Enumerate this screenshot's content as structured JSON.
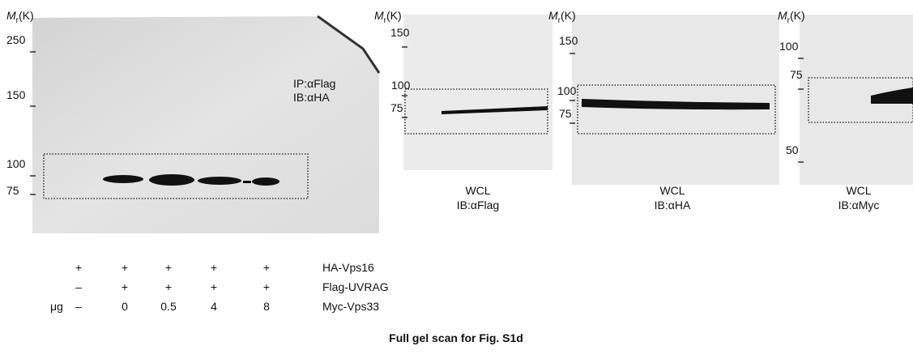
{
  "panels": [
    {
      "mr": {
        "symbol": "M",
        "subscript": "r",
        "unit": "(K)"
      },
      "markers": [
        250,
        150,
        100,
        75
      ],
      "label": [
        "IP:αFlag",
        "IB:αHA"
      ]
    },
    {
      "mr": {
        "symbol": "M",
        "subscript": "r",
        "unit": "(K)"
      },
      "markers": [
        150,
        100,
        75
      ],
      "label": [
        "WCL",
        "IB:αFlag"
      ]
    },
    {
      "mr": {
        "symbol": "M",
        "subscript": "r",
        "unit": "(K)"
      },
      "markers": [
        150,
        100,
        75
      ],
      "label": [
        "WCL",
        "IB:αHA"
      ]
    },
    {
      "mr": {
        "symbol": "M",
        "subscript": "r",
        "unit": "(K)"
      },
      "markers": [
        100,
        75,
        50
      ],
      "label": [
        "WCL",
        "IB:αMyc"
      ]
    }
  ],
  "conditions": {
    "unit": "μg",
    "rows": [
      {
        "cells": [
          "+",
          "+",
          "+",
          "+",
          "+"
        ],
        "label": "HA-Vps16"
      },
      {
        "cells": [
          "–",
          "+",
          "+",
          "+",
          "+"
        ],
        "label": "Flag-UVRAG"
      },
      {
        "cells": [
          "–",
          "0",
          "0.5",
          "4",
          "8"
        ],
        "label": "Myc-Vps33"
      }
    ]
  },
  "caption": "Full gel scan for Fig. S1d"
}
